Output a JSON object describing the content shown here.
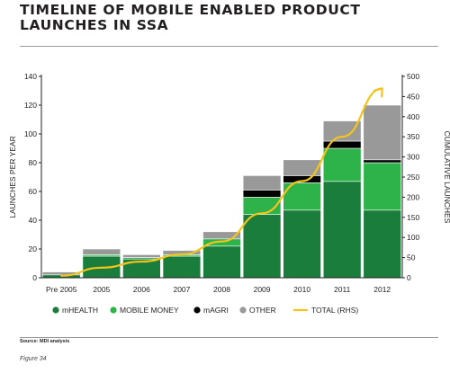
{
  "title_line1": "TIMELINE OF MOBILE ENABLED PRODUCT",
  "title_line2": "LAUNCHES IN SSA",
  "source": "Source: MDI analysis",
  "figure_label": "Figure 34",
  "chart_data": {
    "type": "bar",
    "stacked": true,
    "categories": [
      "Pre 2005",
      "2005",
      "2006",
      "2007",
      "2008",
      "2009",
      "2010",
      "2011",
      "2012"
    ],
    "series": [
      {
        "name": "mHEALTH",
        "values": [
          2,
          15,
          13,
          15,
          22,
          44,
          47,
          67,
          47
        ],
        "color": "#1a7d3c"
      },
      {
        "name": "MOBILE MONEY",
        "values": [
          0,
          1,
          1,
          1,
          5,
          12,
          19,
          23,
          33
        ],
        "color": "#2db34a"
      },
      {
        "name": "mAGRI",
        "values": [
          0,
          0,
          0,
          0,
          0,
          5,
          5,
          5,
          2
        ],
        "color": "#000000"
      },
      {
        "name": "OTHER",
        "values": [
          2,
          4,
          2,
          3,
          5,
          10,
          11,
          14,
          38
        ],
        "color": "#999999"
      }
    ],
    "line_series": {
      "name": "TOTAL (RHS)",
      "axis": "right",
      "values": [
        5,
        25,
        40,
        58,
        90,
        160,
        240,
        350,
        470
      ],
      "color": "#f5c31a",
      "arrow_end": true
    },
    "xlabel": "",
    "ylabel": "LAUNCHES PER YEAR",
    "ylabel_right": "CUMULATIVE LAUNCHES",
    "ylim": [
      0,
      140
    ],
    "yticks": [
      "0",
      "20",
      "40",
      "60",
      "80",
      "100",
      "120",
      "140"
    ],
    "ylim_right": [
      0,
      500
    ],
    "yticks_right": [
      "0",
      "50",
      "100",
      "150",
      "200",
      "250",
      "300",
      "350",
      "400",
      "450",
      "500"
    ],
    "legend_position": "bottom",
    "grid": false
  }
}
